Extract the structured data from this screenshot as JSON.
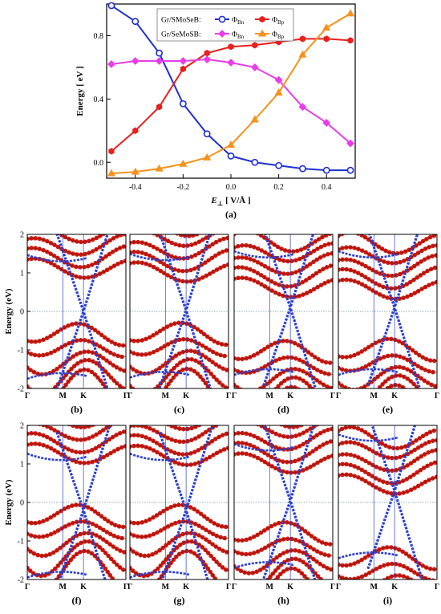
{
  "chart_data": [
    {
      "panel": "(a)",
      "type": "line",
      "xlabel_symbol": "E",
      "xlabel_sub": "⊥",
      "xlabel_unit": "[ V/Å ]",
      "ylabel": "Energy [ eV ]",
      "xlim": [
        -0.52,
        0.52
      ],
      "ylim": [
        -0.1,
        1.0
      ],
      "xticks": [
        -0.4,
        -0.2,
        0.0,
        0.2,
        0.4
      ],
      "xtick_labels": [
        "-0.4",
        "-0.2",
        "0.0",
        "0.2",
        "0.4"
      ],
      "yticks": [
        0.0,
        0.4,
        0.8
      ],
      "ytick_labels": [
        "0.0",
        "0.4",
        "0.8"
      ],
      "legend": {
        "placement": "top-center",
        "rows": [
          {
            "group": "Gr/SMoSeB:",
            "entries": [
              {
                "sym": "Φ",
                "sub": "Bn"
              },
              {
                "sym": "Φ",
                "sub": "Bp"
              }
            ]
          },
          {
            "group": "Gr/SeMoSB:",
            "entries": [
              {
                "sym": "Φ",
                "sub": "Bn"
              },
              {
                "sym": "Φ",
                "sub": "Bp"
              }
            ]
          }
        ]
      },
      "x": [
        -0.5,
        -0.4,
        -0.3,
        -0.2,
        -0.1,
        0.0,
        0.1,
        0.2,
        0.3,
        0.4,
        0.5
      ],
      "series": [
        {
          "group": "Gr/SMoSeB",
          "name": "ΦBn",
          "color": "#1f2fd4",
          "marker": "circle",
          "values": [
            0.99,
            0.89,
            0.69,
            0.37,
            0.18,
            0.04,
            0.0,
            -0.02,
            -0.04,
            -0.05,
            -0.05
          ]
        },
        {
          "group": "Gr/SMoSeB",
          "name": "ΦBp",
          "color": "#e8201e",
          "marker": "hexagon",
          "values": [
            0.07,
            0.2,
            0.35,
            0.59,
            0.69,
            0.73,
            0.74,
            0.76,
            0.78,
            0.78,
            0.77
          ]
        },
        {
          "group": "Gr/SeMoSB",
          "name": "ΦBn",
          "color": "#e83de8",
          "marker": "diamond",
          "values": [
            0.62,
            0.64,
            0.64,
            0.64,
            0.65,
            0.63,
            0.6,
            0.52,
            0.35,
            0.25,
            0.12
          ]
        },
        {
          "group": "Gr/SeMoSB",
          "name": "ΦBp",
          "color": "#f5921e",
          "marker": "triangle",
          "values": [
            -0.07,
            -0.06,
            -0.04,
            -0.01,
            0.03,
            0.11,
            0.27,
            0.44,
            0.68,
            0.85,
            0.94
          ]
        }
      ]
    },
    {
      "type": "band-structure-grid",
      "ylabel": "Energy (eV)",
      "ylim": [
        -2,
        2
      ],
      "yticks": [
        -2,
        -1,
        0,
        1,
        2
      ],
      "ytick_labels": [
        "-2",
        "-1",
        "0",
        "1",
        "2"
      ],
      "kpath_labels": [
        "Γ",
        "M",
        "K",
        "Γ"
      ],
      "fermi_level": 0,
      "graphene_color": "#2a3fd0",
      "tmd_color": "#cc1a10",
      "panels": [
        {
          "label": "(b)",
          "dirac_shift": 0.0,
          "vb_top": -0.3,
          "cb_bottom": 0.95
        },
        {
          "label": "(c)",
          "dirac_shift": 0.03,
          "vb_top": -0.28,
          "cb_bottom": 0.85
        },
        {
          "label": "(d)",
          "dirac_shift": 0.1,
          "vb_top": -0.75,
          "cb_bottom": 0.45
        },
        {
          "label": "(e)",
          "dirac_shift": 0.1,
          "vb_top": -0.7,
          "cb_bottom": 0.4
        },
        {
          "label": "(f)",
          "dirac_shift": -0.2,
          "vb_top": -0.05,
          "cb_bottom": 1.1
        },
        {
          "label": "(g)",
          "dirac_shift": -0.2,
          "vb_top": -0.05,
          "cb_bottom": 1.05
        },
        {
          "label": "(h)",
          "dirac_shift": 0.05,
          "vb_top": -0.5,
          "cb_bottom": 0.85
        },
        {
          "label": "(i)",
          "dirac_shift": 0.3,
          "vb_top": -1.15,
          "cb_bottom": 0.3
        }
      ]
    }
  ]
}
